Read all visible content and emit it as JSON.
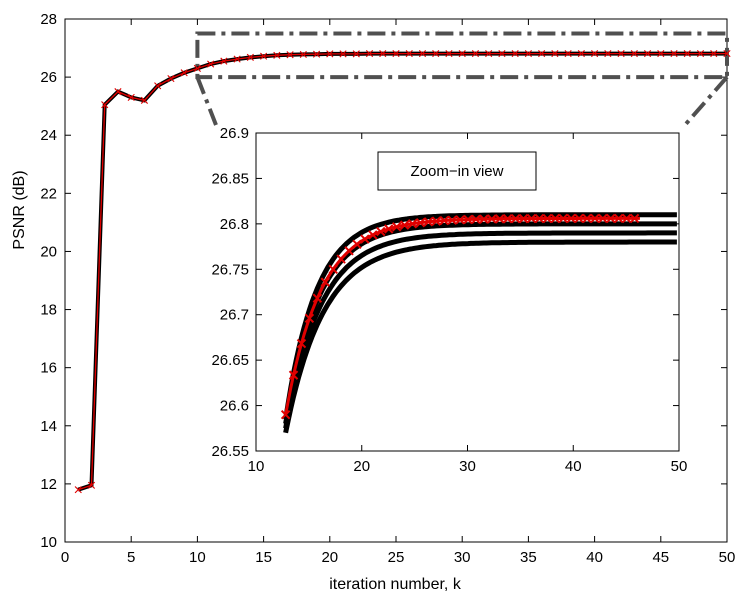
{
  "chart_data": [
    {
      "type": "line",
      "xlabel": "iteration number, k",
      "ylabel": "PSNR (dB)",
      "xlim": [
        0,
        50
      ],
      "ylim": [
        10,
        28
      ],
      "xticks": [
        "0",
        "5",
        "10",
        "15",
        "20",
        "25",
        "30",
        "35",
        "40",
        "45",
        "50"
      ],
      "yticks": [
        "10",
        "12",
        "14",
        "16",
        "18",
        "20",
        "22",
        "24",
        "26",
        "28"
      ],
      "grid": false,
      "colors": {
        "black": "#000000",
        "red": "#e00000",
        "zoom_box": "#505050"
      },
      "x": [
        1,
        2,
        3,
        4,
        5,
        6,
        7,
        8,
        9,
        10,
        11,
        12,
        13,
        14,
        15,
        16,
        17,
        18,
        19,
        20,
        21,
        22,
        23,
        24,
        25,
        26,
        27,
        28,
        29,
        30,
        31,
        32,
        33,
        34,
        35,
        36,
        37,
        38,
        39,
        40,
        41,
        42,
        43,
        44,
        45,
        46,
        47,
        48,
        49,
        50
      ],
      "series": [
        {
          "values": [
            11.8,
            11.95,
            25.05,
            25.5,
            25.3,
            25.2,
            25.7,
            25.95,
            26.15,
            26.3,
            26.45,
            26.55,
            26.62,
            26.68,
            26.72,
            26.75,
            26.77,
            26.78,
            26.79,
            26.8,
            26.8,
            26.8,
            26.81,
            26.81,
            26.81,
            26.81,
            26.81,
            26.81,
            26.81,
            26.81,
            26.81,
            26.81,
            26.81,
            26.81,
            26.81,
            26.81,
            26.81,
            26.81,
            26.81,
            26.81,
            26.81,
            26.81,
            26.81,
            26.81,
            26.81,
            26.81,
            26.81,
            26.81,
            26.81,
            26.81
          ]
        }
      ],
      "zoom_region": {
        "x": [
          10,
          50
        ],
        "y": [
          26,
          27.5
        ]
      }
    },
    {
      "type": "line",
      "xlim": [
        10,
        50
      ],
      "ylim": [
        26.55,
        26.9
      ],
      "xticks": [
        "10",
        "20",
        "30",
        "40",
        "50"
      ],
      "yticks": [
        "26.55",
        "26.6",
        "26.65",
        "26.7",
        "26.75",
        "26.8",
        "26.85",
        "26.9"
      ],
      "annotation": "Zoom−in view",
      "black_curves": [
        {
          "start": 26.57,
          "end": 26.78,
          "rate": 0.28
        },
        {
          "start": 26.575,
          "end": 26.79,
          "rate": 0.3
        },
        {
          "start": 26.58,
          "end": 26.8,
          "rate": 0.32
        },
        {
          "start": 26.585,
          "end": 26.81,
          "rate": 0.34
        }
      ],
      "red_series": {
        "start_x": 12.8,
        "end_x": 46.5,
        "start_y": 26.59,
        "end_y": 26.806,
        "rate": 0.3
      }
    }
  ]
}
